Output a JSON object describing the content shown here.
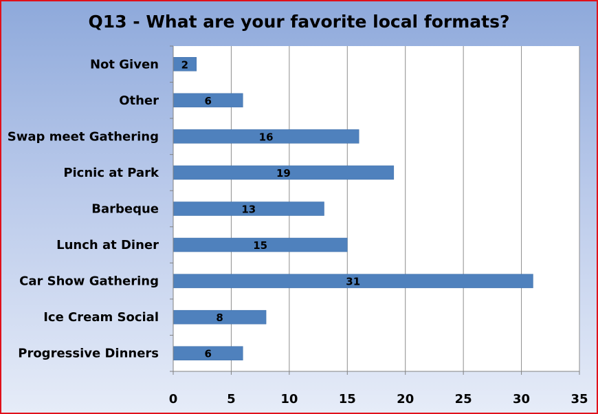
{
  "chart_data": {
    "type": "bar",
    "orientation": "horizontal",
    "title": "Q13 - What are your favorite local formats?",
    "categories": [
      "Not Given",
      "Other",
      "Swap meet Gathering",
      "Picnic at Park",
      "Barbeque",
      "Lunch at Diner",
      "Car Show Gathering",
      "Ice Cream Social",
      "Progressive Dinners"
    ],
    "values": [
      2,
      6,
      16,
      19,
      13,
      15,
      31,
      8,
      6
    ],
    "xlim": [
      0,
      35
    ],
    "xticks": [
      0,
      5,
      10,
      15,
      20,
      25,
      30,
      35
    ],
    "grid": true,
    "data_labels": true,
    "colors": {
      "bar": "#4f81bd",
      "plot_background": "#ffffff",
      "border": "#e0101a"
    }
  }
}
